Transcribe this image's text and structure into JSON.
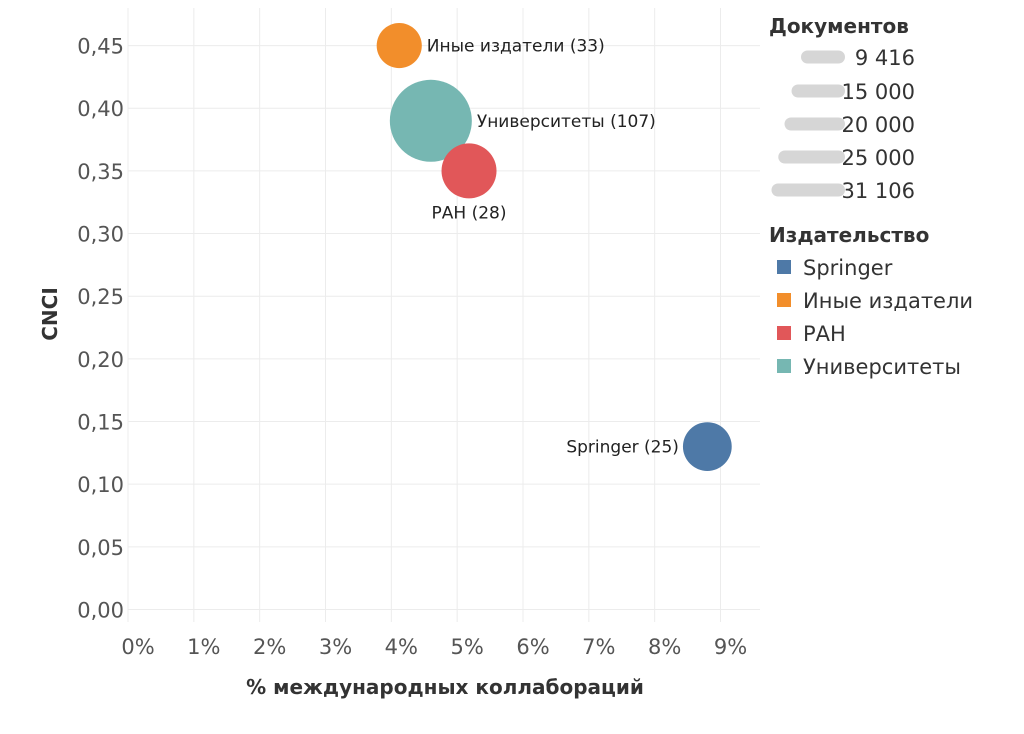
{
  "chart_data": {
    "type": "scatter",
    "xlabel": "% международных коллабораций",
    "ylabel": "CNCI",
    "xlim": [
      0,
      9.6
    ],
    "ylim": [
      -0.01,
      0.48
    ],
    "x_ticks": [
      0,
      1,
      2,
      3,
      4,
      5,
      6,
      7,
      8,
      9
    ],
    "x_tick_labels": [
      "0%",
      "1%",
      "2%",
      "3%",
      "4%",
      "5%",
      "6%",
      "7%",
      "8%",
      "9%"
    ],
    "y_ticks": [
      0,
      0.05,
      0.1,
      0.15,
      0.2,
      0.25,
      0.3,
      0.35,
      0.4,
      0.45
    ],
    "y_tick_labels": [
      "0,00",
      "0,05",
      "0,10",
      "0,15",
      "0,20",
      "0,25",
      "0,30",
      "0,35",
      "0,40",
      "0,45"
    ],
    "grid": true,
    "series": [
      {
        "name": "Springer",
        "x": 8.8,
        "y": 0.13,
        "documents": 11000,
        "label": "Springer (25)",
        "color": "#4e79a7"
      },
      {
        "name": "Иные издатели",
        "x": 4.12,
        "y": 0.45,
        "documents": 9416,
        "label": "Иные издатели (33)",
        "color": "#f28e2b"
      },
      {
        "name": "РАН",
        "x": 5.18,
        "y": 0.35,
        "documents": 14000,
        "label": "РАН (28)",
        "color": "#e15759"
      },
      {
        "name": "Университеты",
        "x": 4.6,
        "y": 0.39,
        "documents": 31106,
        "label": "Университеты (107)",
        "color": "#76b7b2"
      }
    ],
    "size_legend": {
      "title": "Документов",
      "values": [
        9416,
        15000,
        20000,
        25000,
        31106
      ],
      "labels": [
        "9 416",
        "15 000",
        "20 000",
        "25 000",
        "31 106"
      ]
    },
    "color_legend": {
      "title": "Издательство",
      "placement": "right",
      "items": [
        "Springer",
        "Иные издатели",
        "РАН",
        "Университеты"
      ]
    }
  }
}
